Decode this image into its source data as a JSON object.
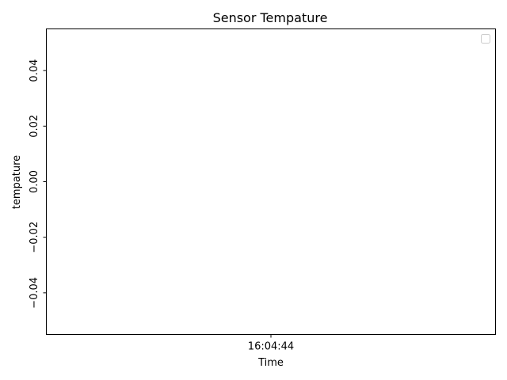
{
  "chart_data": {
    "type": "line",
    "title": "Sensor Tempature",
    "xlabel": "Time",
    "ylabel": "tempature",
    "x_ticks": [
      "16:04:44"
    ],
    "y_ticks": [
      0.04,
      0.02,
      0.0,
      -0.02,
      -0.04
    ],
    "y_tick_labels": [
      "0.04",
      "0.02",
      "0.00",
      "−0.02",
      "−0.04"
    ],
    "ylim": [
      -0.055,
      0.055
    ],
    "series": [],
    "legend": {
      "placement": "top-right",
      "entries": []
    },
    "grid": false
  }
}
